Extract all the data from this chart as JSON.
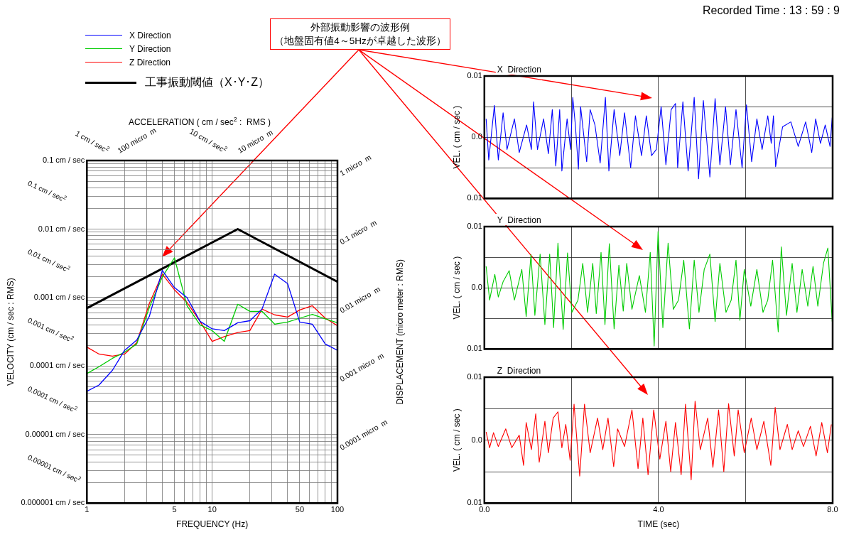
{
  "chart_data": [
    {
      "type": "line",
      "xlabel": "FREQUENCY (Hz)",
      "ylabel": "VELOCITY (cm / sec : RMS)",
      "y2label": "DISPLACEMENT (micro meter : RMS)",
      "log": "xy",
      "grid": true,
      "legend": "top left",
      "marker": "none",
      "line_style": "solid",
      "xlim": [
        1,
        100
      ],
      "xticks": [
        1,
        {
          "value": 2,
          "label": null
        },
        {
          "value": 3,
          "label": null
        },
        {
          "value": 4,
          "label": null
        },
        5,
        {
          "value": 6,
          "label": null
        },
        {
          "value": 7,
          "label": null
        },
        {
          "value": 8,
          "label": null
        },
        {
          "value": 9,
          "label": null
        },
        10,
        {
          "value": 20,
          "label": null
        },
        {
          "value": 30,
          "label": null
        },
        {
          "value": 40,
          "label": null
        },
        50,
        {
          "value": 60,
          "label": null
        },
        {
          "value": 70,
          "label": null
        },
        {
          "value": 80,
          "label": null
        },
        {
          "value": 90,
          "label": null
        },
        100
      ],
      "ylim": [
        1e-06,
        0.1
      ],
      "yticks": [
        {
          "value": 0.1,
          "label": "0.1 cm / sec"
        },
        {
          "value": 0.09,
          "label": null
        },
        {
          "value": 0.08,
          "label": null
        },
        {
          "value": 0.07,
          "label": null
        },
        {
          "value": 0.06,
          "label": null
        },
        {
          "value": 0.05,
          "label": null
        },
        {
          "value": 0.04,
          "label": null
        },
        {
          "value": 0.03,
          "label": null
        },
        {
          "value": 0.02,
          "label": null
        },
        {
          "value": 0.01,
          "label": "0.01 cm / sec"
        },
        {
          "value": 0.009,
          "label": null
        },
        {
          "value": 0.008,
          "label": null
        },
        {
          "value": 0.007,
          "label": null
        },
        {
          "value": 0.006,
          "label": null
        },
        {
          "value": 0.005,
          "label": null
        },
        {
          "value": 0.004,
          "label": null
        },
        {
          "value": 0.003,
          "label": null
        },
        {
          "value": 0.002,
          "label": null
        },
        {
          "value": 0.001,
          "label": "0.001 cm / sec"
        },
        {
          "value": 0.0009,
          "label": null
        },
        {
          "value": 0.0008,
          "label": null
        },
        {
          "value": 0.0007,
          "label": null
        },
        {
          "value": 0.0006,
          "label": null
        },
        {
          "value": 0.0005,
          "label": null
        },
        {
          "value": 0.0004,
          "label": null
        },
        {
          "value": 0.0003,
          "label": null
        },
        {
          "value": 0.0002,
          "label": null
        },
        {
          "value": 0.0001,
          "label": "0.0001 cm / sec"
        },
        {
          "value": 9e-05,
          "label": null
        },
        {
          "value": 8e-05,
          "label": null
        },
        {
          "value": 7e-05,
          "label": null
        },
        {
          "value": 6e-05,
          "label": null
        },
        {
          "value": 5e-05,
          "label": null
        },
        {
          "value": 4e-05,
          "label": null
        },
        {
          "value": 3e-05,
          "label": null
        },
        {
          "value": 2e-05,
          "label": null
        },
        {
          "value": 1e-05,
          "label": "0.00001 cm / sec"
        },
        {
          "value": 9e-06,
          "label": null
        },
        {
          "value": 8e-06,
          "label": null
        },
        {
          "value": 7e-06,
          "label": null
        },
        {
          "value": 6e-06,
          "label": null
        },
        {
          "value": 5e-06,
          "label": null
        },
        {
          "value": 4e-06,
          "label": null
        },
        {
          "value": 3e-06,
          "label": null
        },
        {
          "value": 2e-06,
          "label": null
        },
        {
          "value": 1e-06,
          "label": "0.000001 cm / sec"
        }
      ],
      "x": [
        1,
        1.25,
        1.6,
        2,
        2.5,
        3.15,
        4,
        5,
        6.3,
        8,
        10,
        12.5,
        16,
        20,
        25,
        31.5,
        40,
        50,
        63,
        80,
        100
      ],
      "series": [
        {
          "name": "X  Direction",
          "color": "#0000ff",
          "values": [
            4.3e-05,
            5.3e-05,
            8.7e-05,
            0.00017,
            0.00024,
            0.00053,
            0.0025,
            0.0014,
            0.001,
            0.00045,
            0.00035,
            0.00033,
            0.00043,
            0.00046,
            0.00068,
            0.0022,
            0.0016,
            0.00044,
            0.00041,
            0.00021,
            0.00017
          ]
        },
        {
          "name": "Y  Direction",
          "color": "#00cc00",
          "values": [
            7.8e-05,
            9.8e-05,
            0.00013,
            0.00016,
            0.00021,
            0.00072,
            0.002,
            0.0038,
            0.00076,
            0.0004,
            0.00033,
            0.00023,
            0.0008,
            0.00063,
            0.00063,
            0.00041,
            0.00044,
            0.0005,
            0.00057,
            0.00049,
            0.00043
          ]
        },
        {
          "name": "Z  Direction",
          "color": "#ff0000",
          "values": [
            0.00019,
            0.00015,
            0.00014,
            0.00015,
            0.00022,
            0.00082,
            0.0022,
            0.0013,
            0.00085,
            0.00045,
            0.00023,
            0.00027,
            0.00031,
            0.00033,
            0.00068,
            0.00056,
            0.00052,
            0.00066,
            0.00076,
            0.0005,
            0.00039
          ]
        },
        {
          "name": "工事振動閾値（X･Y･Z）",
          "color": "#000000",
          "x": [
            1,
            16,
            100
          ],
          "values": [
            0.0007,
            0.01,
            0.0017
          ]
        }
      ],
      "annotations": [
        "外部振動影響の波形例",
        "（地盤固有値4～5Hzが卓越した波形）",
        "ACCELERATION ( cm / sec$^{2}$ :  RMS )",
        "1 cm / sec$^{2}$",
        "100 micro  m",
        "10 cm / sec$^{2}$",
        "10 micro  m",
        "0.1 cm / sec$^{2}$",
        "0.01 cm / sec$^{2}$",
        "0.001 cm / sec$^{2}$",
        "0.0001 cm / sec$^{2}$",
        "0.00001 cm / sec$^{2}$",
        "1 micro  m",
        "0.1 micro  m",
        "0.01 micro  m",
        "0.001 micro  m",
        "0.0001 micro  m"
      ]
    },
    {
      "type": "line",
      "title": "X  Direction",
      "ylabel": "VEL. ( cm / sec )",
      "grid": true,
      "marker": "none",
      "tick_labels": "y",
      "xlim": [
        0,
        8
      ],
      "xticks": [
        0,
        2,
        4,
        6,
        8
      ],
      "ylim": [
        -0.01,
        0.01
      ],
      "yticks": [
        {
          "value": -0.01,
          "label": "0.01"
        },
        {
          "value": -0.005,
          "label": null
        },
        {
          "value": 0,
          "label": "0.0"
        },
        {
          "value": 0.005,
          "label": null
        },
        {
          "value": 0.01,
          "label": "0.01"
        }
      ],
      "annotations": [
        "Recorded Time : 13 : 59 : 9"
      ],
      "x": [
        0.04,
        0.1,
        0.23,
        0.32,
        0.43,
        0.52,
        0.69,
        0.8,
        0.97,
        1.08,
        1.13,
        1.22,
        1.36,
        1.47,
        1.56,
        1.64,
        1.73,
        1.78,
        1.9,
        1.98,
        2.03,
        2.09,
        2.16,
        2.21,
        2.35,
        2.43,
        2.54,
        2.66,
        2.78,
        2.86,
        2.98,
        3.11,
        3.22,
        3.36,
        3.47,
        3.61,
        3.72,
        3.84,
        3.95,
        4.06,
        4.17,
        4.29,
        4.39,
        4.44,
        4.56,
        4.68,
        4.82,
        4.92,
        5.03,
        5.18,
        5.3,
        5.41,
        5.54,
        5.65,
        5.78,
        5.92,
        6.02,
        6.14,
        6.26,
        6.38,
        6.51,
        6.59,
        6.64,
        6.69,
        6.85,
        7.04,
        7.21,
        7.38,
        7.52,
        7.61,
        7.72,
        7.83,
        7.94,
        7.99
      ],
      "series": [
        {
          "color": "#0000ff",
          "values": [
            0.003,
            -0.0037,
            0.0052,
            -0.0037,
            0.004,
            -0.002,
            0.003,
            -0.0025,
            0.002,
            -0.002,
            0.0058,
            -0.002,
            0.003,
            -0.0027,
            0.0045,
            -0.0047,
            0.0045,
            -0.0055,
            0.003,
            -0.002,
            0.0065,
            0.002,
            -0.0052,
            0.005,
            -0.004,
            0.0045,
            0.002,
            -0.0042,
            0.0065,
            -0.0055,
            0.0045,
            -0.003,
            0.004,
            -0.005,
            0.0035,
            -0.003,
            0.0035,
            -0.003,
            -0.002,
            0.005,
            -0.0045,
            0.0045,
            0.0055,
            -0.005,
            0.0058,
            -0.0055,
            0.0065,
            -0.0068,
            0.006,
            -0.0065,
            0.0063,
            -0.0045,
            0.005,
            -0.0045,
            0.0045,
            -0.005,
            0.0053,
            -0.004,
            0.003,
            -0.002,
            0.0035,
            -0.001,
            0.0035,
            -0.0048,
            0.0017,
            0.0025,
            -0.0015,
            0.0025,
            -0.0025,
            0.003,
            -0.001,
            0.002,
            -0.0015,
            0.0032
          ]
        }
      ]
    },
    {
      "type": "line",
      "title": "Y  Direction",
      "ylabel": "VEL. ( cm / sec )",
      "grid": true,
      "marker": "none",
      "tick_labels": "y",
      "xlim": [
        0,
        8
      ],
      "xticks": [
        0,
        2,
        4,
        6,
        8
      ],
      "ylim": [
        -0.01,
        0.01
      ],
      "yticks": [
        {
          "value": -0.01,
          "label": "0.01"
        },
        {
          "value": -0.005,
          "label": null
        },
        {
          "value": 0,
          "label": "0.0"
        },
        {
          "value": 0.005,
          "label": null
        },
        {
          "value": 0.01,
          "label": "0.01"
        }
      ],
      "x": [
        0.04,
        0.12,
        0.24,
        0.32,
        0.43,
        0.57,
        0.69,
        0.86,
        0.96,
        1.07,
        1.16,
        1.28,
        1.39,
        1.5,
        1.59,
        1.69,
        1.81,
        1.91,
        2.01,
        2.15,
        2.26,
        2.37,
        2.49,
        2.57,
        2.68,
        2.77,
        2.87,
        2.98,
        3.09,
        3.19,
        3.27,
        3.39,
        3.56,
        3.7,
        3.81,
        3.9,
        3.99,
        4.1,
        4.22,
        4.34,
        4.46,
        4.58,
        4.71,
        4.82,
        4.93,
        5.05,
        5.18,
        5.3,
        5.41,
        5.55,
        5.67,
        5.78,
        5.87,
        5.97,
        6.12,
        6.26,
        6.4,
        6.51,
        6.62,
        6.75,
        6.82,
        6.94,
        7.07,
        7.18,
        7.3,
        7.43,
        7.55,
        7.66,
        7.79,
        7.89,
        7.99
      ],
      "series": [
        {
          "color": "#00cc00",
          "values": [
            0.0035,
            -0.002,
            0.0022,
            -0.0015,
            0.001,
            0.0028,
            -0.002,
            0.003,
            -0.0047,
            0.0054,
            -0.0045,
            0.0055,
            -0.006,
            0.0055,
            -0.0065,
            0.0073,
            -0.0068,
            0.0057,
            -0.004,
            -0.002,
            0.004,
            -0.004,
            0.004,
            -0.0042,
            0.0058,
            -0.006,
            0.0072,
            -0.0067,
            0.0037,
            -0.0038,
            0.004,
            -0.0035,
            0.002,
            -0.004,
            0.0058,
            -0.0095,
            0.0092,
            -0.0065,
            0.0073,
            -0.0035,
            -0.002,
            0.0045,
            -0.0067,
            0.0045,
            -0.004,
            0.003,
            0.0055,
            -0.0055,
            0.004,
            -0.004,
            -0.002,
            0.0045,
            -0.0053,
            0.003,
            -0.003,
            0.003,
            -0.004,
            -0.002,
            0.0045,
            -0.0072,
            0.0067,
            -0.0045,
            0.004,
            -0.004,
            0.003,
            -0.003,
            0.0035,
            -0.003,
            0.004,
            0.0065,
            -0.0055
          ]
        }
      ]
    },
    {
      "type": "line",
      "title": "Z  Direction",
      "xlabel": "TIME (sec)",
      "ylabel": "VEL. ( cm / sec )",
      "grid": true,
      "marker": "none",
      "xlim": [
        0,
        8
      ],
      "xticks": [
        {
          "value": 0,
          "label": "0.0"
        },
        {
          "value": 2,
          "label": null
        },
        {
          "value": 4,
          "label": "4.0"
        },
        {
          "value": 6,
          "label": null
        },
        {
          "value": 8,
          "label": "8.0"
        }
      ],
      "ylim": [
        -0.01,
        0.01
      ],
      "yticks": [
        {
          "value": -0.01,
          "label": "0.01"
        },
        {
          "value": -0.005,
          "label": null
        },
        {
          "value": 0,
          "label": "0.0"
        },
        {
          "value": 0.005,
          "label": null
        },
        {
          "value": 0.01,
          "label": "0.01"
        }
      ],
      "x": [
        0.04,
        0.12,
        0.21,
        0.32,
        0.49,
        0.63,
        0.8,
        0.9,
        0.96,
        1.08,
        1.18,
        1.26,
        1.39,
        1.47,
        1.58,
        1.69,
        1.78,
        1.87,
        1.97,
        2.06,
        2.19,
        2.3,
        2.43,
        2.6,
        2.72,
        2.84,
        2.97,
        3.06,
        3.22,
        3.39,
        3.53,
        3.64,
        3.76,
        3.89,
        4.03,
        4.17,
        4.28,
        4.39,
        4.52,
        4.62,
        4.75,
        4.84,
        4.96,
        5.13,
        5.25,
        5.38,
        5.5,
        5.61,
        5.74,
        5.83,
        5.97,
        6.13,
        6.26,
        6.42,
        6.58,
        6.68,
        6.79,
        6.96,
        7.07,
        7.21,
        7.33,
        7.49,
        7.62,
        7.75,
        7.88,
        7.97
      ],
      "series": [
        {
          "color": "#ff0000",
          "values": [
            0.0013,
            -0.0012,
            0.0012,
            -0.001,
            0.0018,
            -0.0012,
            0.0008,
            -0.004,
            0.0028,
            -0.0015,
            0.0042,
            -0.0035,
            0.003,
            -0.002,
            0.0035,
            0.0045,
            -0.0012,
            0.0025,
            -0.0032,
            0.0057,
            -0.0057,
            0.0057,
            -0.002,
            0.0035,
            -0.0015,
            0.0035,
            -0.0042,
            0.0018,
            -0.001,
            0.0048,
            -0.0045,
            0.0035,
            -0.0055,
            0.0048,
            -0.003,
            0.003,
            -0.005,
            0.0028,
            -0.0055,
            0.0057,
            -0.0063,
            0.0062,
            -0.0015,
            0.0035,
            -0.0043,
            0.0048,
            -0.005,
            0.0058,
            -0.0025,
            0.0048,
            -0.002,
            0.0035,
            -0.0015,
            0.003,
            -0.004,
            0.0052,
            -0.0015,
            0.0025,
            -0.0015,
            0.0015,
            -0.001,
            0.0022,
            -0.0025,
            0.0028,
            -0.002,
            0.0025
          ]
        }
      ]
    }
  ]
}
